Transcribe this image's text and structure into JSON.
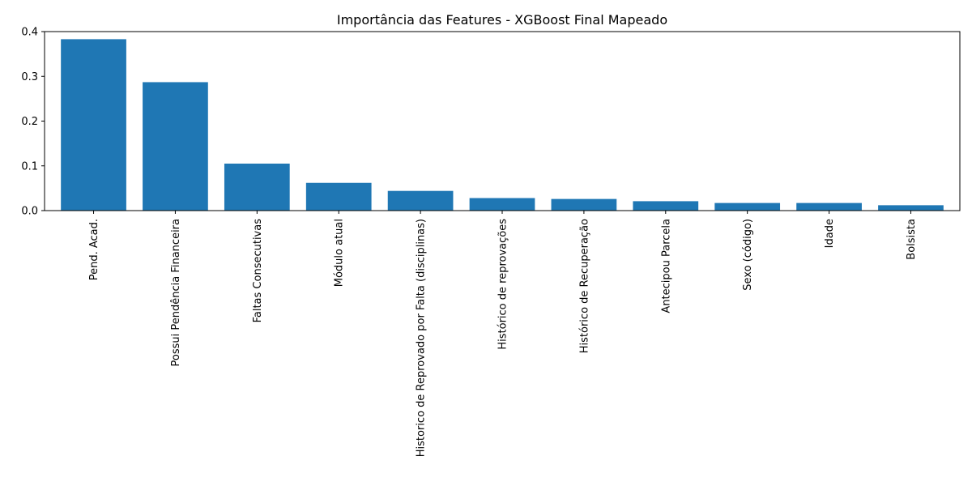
{
  "chart_data": {
    "type": "bar",
    "title": "Importância das Features - XGBoost Final Mapeado",
    "xlabel": "",
    "ylabel": "",
    "ylim": [
      0,
      0.4
    ],
    "yticks": [
      "0.0",
      "0.1",
      "0.2",
      "0.3",
      "0.4"
    ],
    "categories": [
      "Pend. Acad.",
      "Possui Pendência Financeira",
      "Faltas Consecutivas",
      "Módulo atual",
      "Historico de Reprovado por Falta (disciplinas)",
      "Histórico de reprovações",
      "Histórico de Recuperação",
      "Antecipou Parcela",
      "Sexo (código)",
      "Idade",
      "Bolsista"
    ],
    "values": [
      0.383,
      0.287,
      0.105,
      0.062,
      0.044,
      0.028,
      0.026,
      0.021,
      0.017,
      0.017,
      0.012
    ],
    "bar_color": "#1f77b4",
    "grid": false
  }
}
